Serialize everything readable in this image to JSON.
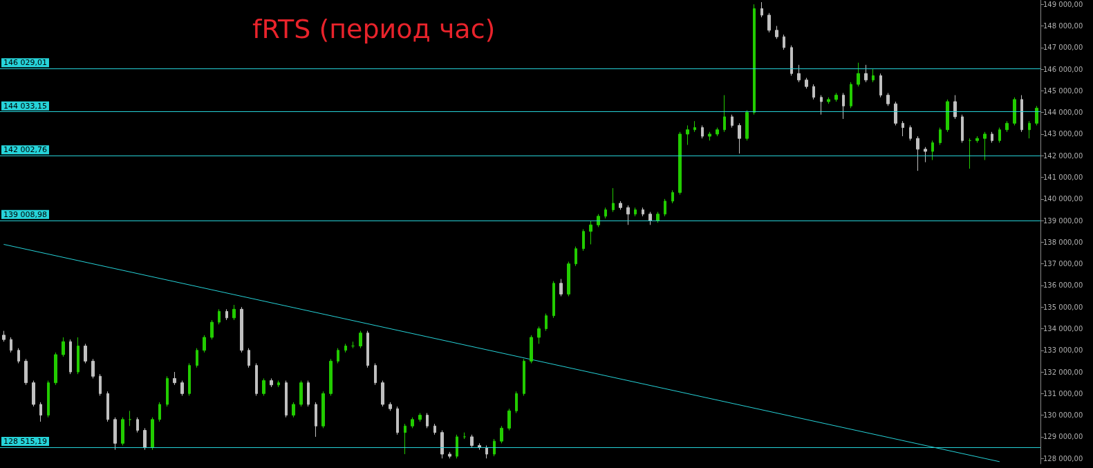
{
  "chart_data": {
    "type": "candlestick",
    "title": "fRTS (период час)",
    "categories": [
      null,
      null,
      null,
      null,
      null,
      null,
      null,
      null,
      null,
      null,
      null,
      null,
      null,
      null,
      null,
      null,
      null,
      null,
      null,
      null,
      null,
      null,
      null,
      null,
      null,
      null,
      null,
      null,
      null,
      null,
      null,
      null,
      null,
      null,
      null,
      null,
      null,
      null,
      null,
      null,
      null,
      null,
      null,
      null,
      null,
      null,
      null,
      null,
      null,
      null,
      null,
      null,
      null,
      null,
      null,
      null,
      null,
      null,
      null,
      null,
      null,
      null,
      null,
      null,
      null,
      null,
      null,
      null,
      null,
      null,
      null,
      null,
      null,
      null,
      null,
      null,
      null,
      null,
      null,
      null,
      null,
      null,
      null,
      null,
      null,
      null,
      null,
      null,
      null,
      null,
      null,
      null,
      null,
      null,
      null,
      null,
      null,
      null,
      null,
      null,
      null,
      null,
      null,
      null,
      null,
      null,
      null,
      null,
      null,
      null,
      null,
      null,
      null,
      null,
      null,
      null,
      null,
      null,
      null,
      null,
      null,
      null,
      null,
      null,
      null,
      null,
      null,
      null,
      null,
      null,
      null,
      null,
      null,
      null,
      null,
      null,
      null,
      null,
      null,
      null
    ],
    "ohlc": [
      [
        133700,
        133900,
        133400,
        133500
      ],
      [
        133500,
        133600,
        132900,
        133000
      ],
      [
        133000,
        133100,
        132400,
        132500
      ],
      [
        132500,
        132600,
        131400,
        131500
      ],
      [
        131500,
        131600,
        130400,
        130500
      ],
      [
        130500,
        130600,
        129700,
        130000
      ],
      [
        130000,
        131600,
        129900,
        131500
      ],
      [
        131500,
        132900,
        131400,
        132800
      ],
      [
        132800,
        133600,
        132700,
        133400
      ],
      [
        133400,
        133500,
        131900,
        132000
      ],
      [
        132000,
        133600,
        131900,
        133200
      ],
      [
        133200,
        133300,
        132400,
        132500
      ],
      [
        132500,
        132600,
        131700,
        131800
      ],
      [
        131800,
        131900,
        130900,
        131000
      ],
      [
        131000,
        131100,
        129700,
        129800
      ],
      [
        129800,
        129900,
        128400,
        128700
      ],
      [
        128700,
        129900,
        128600,
        129800
      ],
      [
        129800,
        130200,
        129500,
        129800
      ],
      [
        129800,
        129900,
        129200,
        129300
      ],
      [
        129300,
        129400,
        128400,
        128500
      ],
      [
        128500,
        129900,
        128400,
        129800
      ],
      [
        129800,
        130600,
        129700,
        130500
      ],
      [
        130500,
        131800,
        130400,
        131700
      ],
      [
        131700,
        132000,
        131400,
        131500
      ],
      [
        131500,
        131600,
        130900,
        131000
      ],
      [
        131000,
        132400,
        130900,
        132300
      ],
      [
        132300,
        133100,
        132200,
        133000
      ],
      [
        133000,
        133700,
        132900,
        133600
      ],
      [
        133600,
        134400,
        133500,
        134300
      ],
      [
        134300,
        134900,
        134200,
        134800
      ],
      [
        134800,
        134900,
        134400,
        134500
      ],
      [
        134500,
        135100,
        134400,
        134900
      ],
      [
        134900,
        135000,
        132900,
        133000
      ],
      [
        133000,
        133100,
        132200,
        132300
      ],
      [
        132300,
        132400,
        130900,
        131000
      ],
      [
        131000,
        131700,
        130900,
        131600
      ],
      [
        131600,
        131700,
        131300,
        131400
      ],
      [
        131400,
        131600,
        131300,
        131500
      ],
      [
        131500,
        131600,
        129900,
        130000
      ],
      [
        130000,
        130600,
        129900,
        130500
      ],
      [
        130500,
        131600,
        130400,
        131500
      ],
      [
        131500,
        131600,
        130400,
        130500
      ],
      [
        130500,
        130600,
        129000,
        129500
      ],
      [
        129500,
        131100,
        129400,
        131000
      ],
      [
        131000,
        132600,
        130900,
        132500
      ],
      [
        132500,
        133100,
        132400,
        133000
      ],
      [
        133000,
        133300,
        132900,
        133200
      ],
      [
        133200,
        133400,
        133100,
        133200
      ],
      [
        133200,
        133900,
        133100,
        133800
      ],
      [
        133800,
        133900,
        132200,
        132300
      ],
      [
        132300,
        132400,
        131400,
        131500
      ],
      [
        131500,
        131600,
        130400,
        130500
      ],
      [
        130500,
        130600,
        130200,
        130300
      ],
      [
        130300,
        130400,
        129100,
        129200
      ],
      [
        129200,
        129600,
        128200,
        129500
      ],
      [
        129500,
        129900,
        129400,
        129800
      ],
      [
        129800,
        130100,
        129700,
        130000
      ],
      [
        130000,
        130100,
        129400,
        129500
      ],
      [
        129500,
        129600,
        129100,
        129200
      ],
      [
        129200,
        129300,
        128000,
        128200
      ],
      [
        128200,
        128300,
        128000,
        128100
      ],
      [
        128100,
        129100,
        128000,
        129000
      ],
      [
        129000,
        129200,
        128900,
        129000
      ],
      [
        129000,
        129100,
        128500,
        128600
      ],
      [
        128600,
        128700,
        128400,
        128500
      ],
      [
        128500,
        128600,
        128000,
        128200
      ],
      [
        128200,
        128900,
        128100,
        128800
      ],
      [
        128800,
        129500,
        128700,
        129400
      ],
      [
        129400,
        130300,
        129300,
        130200
      ],
      [
        130200,
        131100,
        130100,
        131000
      ],
      [
        131000,
        132600,
        130900,
        132500
      ],
      [
        132500,
        133700,
        132400,
        133600
      ],
      [
        133600,
        134100,
        133300,
        134000
      ],
      [
        134000,
        134700,
        133900,
        134600
      ],
      [
        134600,
        136200,
        134500,
        136100
      ],
      [
        136100,
        136300,
        135500,
        135600
      ],
      [
        135600,
        137100,
        135500,
        137000
      ],
      [
        137000,
        137800,
        136900,
        137700
      ],
      [
        137700,
        138600,
        137600,
        138500
      ],
      [
        138500,
        139000,
        137900,
        138800
      ],
      [
        138800,
        139300,
        138700,
        139200
      ],
      [
        139200,
        139600,
        139100,
        139500
      ],
      [
        139500,
        140500,
        139400,
        139800
      ],
      [
        139800,
        139900,
        139500,
        139600
      ],
      [
        139600,
        139700,
        138800,
        139300
      ],
      [
        139300,
        139600,
        139200,
        139500
      ],
      [
        139500,
        139600,
        139200,
        139300
      ],
      [
        139300,
        139400,
        138800,
        139000
      ],
      [
        139000,
        139400,
        138900,
        139300
      ],
      [
        139300,
        140000,
        139200,
        139900
      ],
      [
        139900,
        140400,
        139800,
        140300
      ],
      [
        140300,
        143100,
        140200,
        143000
      ],
      [
        143000,
        143400,
        142500,
        143200
      ],
      [
        143200,
        143600,
        143100,
        143300
      ],
      [
        143300,
        143400,
        142800,
        142900
      ],
      [
        142900,
        143100,
        142700,
        143000
      ],
      [
        143000,
        143300,
        142900,
        143200
      ],
      [
        143200,
        144800,
        143100,
        143800
      ],
      [
        143800,
        143900,
        143300,
        143400
      ],
      [
        143400,
        143500,
        142100,
        142800
      ],
      [
        142800,
        144100,
        142700,
        144000
      ],
      [
        144000,
        149000,
        143900,
        148800
      ],
      [
        148800,
        149100,
        148400,
        148500
      ],
      [
        148500,
        148600,
        147700,
        147800
      ],
      [
        147800,
        148000,
        147400,
        147500
      ],
      [
        147500,
        147600,
        146900,
        147000
      ],
      [
        147000,
        147100,
        145700,
        145800
      ],
      [
        145800,
        146200,
        145400,
        145500
      ],
      [
        145500,
        145600,
        145100,
        145200
      ],
      [
        145200,
        145300,
        144600,
        144700
      ],
      [
        144700,
        144800,
        143900,
        144500
      ],
      [
        144500,
        144700,
        144400,
        144600
      ],
      [
        144600,
        144900,
        144500,
        144800
      ],
      [
        144800,
        144900,
        143700,
        144300
      ],
      [
        144300,
        145400,
        144200,
        145300
      ],
      [
        145300,
        146300,
        145200,
        145800
      ],
      [
        145800,
        146200,
        145400,
        145500
      ],
      [
        145500,
        146000,
        145400,
        145700
      ],
      [
        145700,
        145800,
        144700,
        144800
      ],
      [
        144800,
        144900,
        144300,
        144400
      ],
      [
        144400,
        144500,
        143400,
        143500
      ],
      [
        143500,
        143600,
        142900,
        143300
      ],
      [
        143300,
        143400,
        142700,
        142800
      ],
      [
        142800,
        142900,
        141300,
        142300
      ],
      [
        142300,
        142400,
        141700,
        142200
      ],
      [
        142200,
        142700,
        141800,
        142600
      ],
      [
        142600,
        143300,
        142500,
        143200
      ],
      [
        143200,
        144600,
        143100,
        144500
      ],
      [
        144500,
        144800,
        143700,
        143800
      ],
      [
        143800,
        143900,
        142600,
        142700
      ],
      [
        142700,
        142800,
        141400,
        142700
      ],
      [
        142700,
        142900,
        142600,
        142800
      ],
      [
        142800,
        143100,
        141800,
        143000
      ],
      [
        143000,
        143100,
        142600,
        142700
      ],
      [
        142700,
        143300,
        142600,
        143200
      ],
      [
        143200,
        143600,
        143100,
        143500
      ],
      [
        143500,
        144700,
        143400,
        144600
      ],
      [
        144600,
        144800,
        143100,
        143200
      ],
      [
        143200,
        143600,
        142800,
        143500
      ],
      [
        143500,
        144300,
        143400,
        144200
      ]
    ],
    "colors": [
      "#c0c0c0",
      "#c0c0c0",
      "#c0c0c0",
      "#c0c0c0",
      "#c0c0c0",
      "#c0c0c0",
      "#22cc00",
      "#22cc00",
      "#22cc00",
      "#c0c0c0",
      "#22cc00",
      "#c0c0c0",
      "#c0c0c0",
      "#c0c0c0",
      "#c0c0c0",
      "#c0c0c0",
      "#22cc00",
      "#22cc00",
      "#c0c0c0",
      "#c0c0c0",
      "#22cc00",
      "#22cc00",
      "#22cc00",
      "#c0c0c0",
      "#c0c0c0",
      "#22cc00",
      "#22cc00",
      "#22cc00",
      "#22cc00",
      "#22cc00",
      "#c0c0c0",
      "#22cc00",
      "#c0c0c0",
      "#c0c0c0",
      "#c0c0c0",
      "#22cc00",
      "#c0c0c0",
      "#22cc00",
      "#c0c0c0",
      "#22cc00",
      "#22cc00",
      "#c0c0c0",
      "#c0c0c0",
      "#22cc00",
      "#22cc00",
      "#22cc00",
      "#22cc00",
      "#22cc00",
      "#22cc00",
      "#c0c0c0",
      "#c0c0c0",
      "#c0c0c0",
      "#c0c0c0",
      "#c0c0c0",
      "#22cc00",
      "#22cc00",
      "#22cc00",
      "#c0c0c0",
      "#c0c0c0",
      "#c0c0c0",
      "#c0c0c0",
      "#22cc00",
      "#22cc00",
      "#c0c0c0",
      "#c0c0c0",
      "#c0c0c0",
      "#22cc00",
      "#22cc00",
      "#22cc00",
      "#22cc00",
      "#22cc00",
      "#22cc00",
      "#22cc00",
      "#22cc00",
      "#22cc00",
      "#c0c0c0",
      "#22cc00",
      "#22cc00",
      "#22cc00",
      "#22cc00",
      "#22cc00",
      "#22cc00",
      "#22cc00",
      "#c0c0c0",
      "#c0c0c0",
      "#22cc00",
      "#c0c0c0",
      "#c0c0c0",
      "#22cc00",
      "#22cc00",
      "#22cc00",
      "#22cc00",
      "#22cc00",
      "#22cc00",
      "#c0c0c0",
      "#22cc00",
      "#22cc00",
      "#22cc00",
      "#c0c0c0",
      "#c0c0c0",
      "#22cc00",
      "#22cc00",
      "#c0c0c0",
      "#c0c0c0",
      "#c0c0c0",
      "#c0c0c0",
      "#c0c0c0",
      "#c0c0c0",
      "#c0c0c0",
      "#c0c0c0",
      "#c0c0c0",
      "#22cc00",
      "#22cc00",
      "#c0c0c0",
      "#22cc00",
      "#22cc00",
      "#c0c0c0",
      "#22cc00",
      "#c0c0c0",
      "#c0c0c0",
      "#c0c0c0",
      "#c0c0c0",
      "#c0c0c0",
      "#c0c0c0",
      "#c0c0c0",
      "#22cc00",
      "#22cc00",
      "#22cc00",
      "#c0c0c0",
      "#c0c0c0",
      "#22cc00",
      "#22cc00",
      "#22cc00",
      "#c0c0c0",
      "#22cc00",
      "#22cc00",
      "#22cc00",
      "#c0c0c0",
      "#22cc00",
      "#22cc00"
    ],
    "series": [
      {
        "type": "line",
        "color": "#26d3d9",
        "values": [
          137900,
          null,
          null,
          null,
          null,
          null,
          null,
          null,
          null,
          null,
          null,
          null,
          null,
          null,
          null,
          null,
          null,
          null,
          null,
          null,
          null,
          null,
          null,
          null,
          null,
          null,
          null,
          null,
          null,
          null,
          null,
          null,
          null,
          null,
          null,
          null,
          null,
          null,
          null,
          null,
          null,
          null,
          null,
          null,
          null,
          null,
          null,
          null,
          null,
          null,
          null,
          null,
          null,
          null,
          null,
          null,
          null,
          null,
          null,
          null,
          null,
          null,
          null,
          null,
          null,
          null,
          null,
          null,
          null,
          null,
          null,
          null,
          null,
          null,
          null,
          null,
          null,
          null,
          null,
          null,
          null,
          null,
          null,
          null,
          null,
          null,
          null,
          null,
          null,
          null,
          null,
          null,
          null,
          null,
          null,
          null,
          null,
          null,
          null,
          null,
          null,
          null,
          null,
          null,
          null,
          null,
          null,
          null,
          null,
          null,
          null,
          null,
          null,
          null,
          null,
          null,
          null,
          null,
          null,
          null,
          null,
          null,
          null,
          null,
          null,
          null,
          null,
          null,
          null,
          null,
          null,
          null,
          null,
          null,
          127850,
          null,
          null,
          null,
          null,
          null
        ]
      }
    ],
    "ylim": [
      127750,
      149200
    ],
    "yticks": [
      {
        "value": 128000,
        "label": "128 000,00"
      },
      {
        "value": 129000,
        "label": "129 000,00"
      },
      {
        "value": 130000,
        "label": "130 000,00"
      },
      {
        "value": 131000,
        "label": "131 000,00"
      },
      {
        "value": 132000,
        "label": "132 000,00"
      },
      {
        "value": 133000,
        "label": "133 000,00"
      },
      {
        "value": 134000,
        "label": "134 000,00"
      },
      {
        "value": 135000,
        "label": "135 000,00"
      },
      {
        "value": 136000,
        "label": "136 000,00"
      },
      {
        "value": 137000,
        "label": "137 000,00"
      },
      {
        "value": 138000,
        "label": "138 000,00"
      },
      {
        "value": 139000,
        "label": "139 000,00"
      },
      {
        "value": 140000,
        "label": "140 000,00"
      },
      {
        "value": 141000,
        "label": "141 000,00"
      },
      {
        "value": 142000,
        "label": "142 000,00"
      },
      {
        "value": 143000,
        "label": "143 000,00"
      },
      {
        "value": 144000,
        "label": "144 000,00"
      },
      {
        "value": 145000,
        "label": "145 000,00"
      },
      {
        "value": 146000,
        "label": "146 000,00"
      },
      {
        "value": 147000,
        "label": "147 000,00"
      },
      {
        "value": 148000,
        "label": "148 000,00"
      },
      {
        "value": 149000,
        "label": "149 000,00"
      }
    ],
    "ref_lines": [
      {
        "axis": "y",
        "value": 146029.01,
        "label": "146 029,01",
        "color": "#26d3d9"
      },
      {
        "axis": "y",
        "value": 144033.15,
        "label": "144 033,15",
        "color": "#26d3d9"
      },
      {
        "axis": "y",
        "value": 142002.76,
        "label": "142 002,76",
        "color": "#26d3d9"
      },
      {
        "axis": "y",
        "value": 139008.98,
        "label": "139 008,98",
        "color": "#26d3d9"
      },
      {
        "axis": "y",
        "value": 128515.19,
        "label": "128 515,19",
        "color": "#26d3d9"
      }
    ],
    "grid": false,
    "tick_labels": "y"
  }
}
